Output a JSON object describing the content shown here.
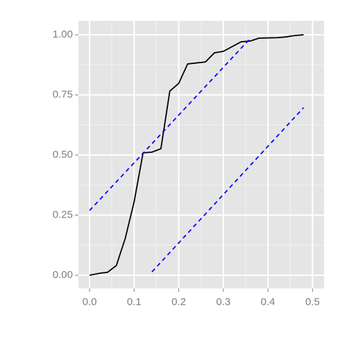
{
  "chart_data": {
    "type": "line",
    "xlim": [
      -0.025,
      0.526
    ],
    "ylim": [
      -0.055,
      1.058
    ],
    "xticks": [
      {
        "value": 0,
        "label": "0.0"
      },
      0.1,
      0.2,
      0.3,
      0.4,
      0.5
    ],
    "yticks": [
      {
        "value": 0,
        "label": "0.00"
      },
      0.25,
      {
        "value": 0.5,
        "label": "0.50"
      },
      0.75,
      {
        "value": 1,
        "label": "1.00"
      }
    ],
    "grid": true,
    "series": [
      {
        "color": "#000000",
        "dash": false,
        "x": [
          0,
          0.025,
          0.04,
          0.06,
          0.08,
          0.1,
          0.12,
          0.14,
          0.16,
          0.18,
          0.2,
          0.22,
          0.26,
          0.28,
          0.3,
          0.34,
          0.36,
          0.38,
          0.42,
          0.44,
          0.46,
          0.48
        ],
        "values": [
          0,
          0.009,
          0.012,
          0.04,
          0.153,
          0.306,
          0.509,
          0.512,
          0.526,
          0.766,
          0.798,
          0.879,
          0.887,
          0.925,
          0.931,
          0.971,
          0.974,
          0.986,
          0.988,
          0.991,
          0.997,
          1.0
        ]
      },
      {
        "color": "#0000ff",
        "dash": true,
        "x": [
          0,
          0.362
        ],
        "values": [
          0.269,
          0.988
        ]
      },
      {
        "color": "#0000ff",
        "dash": true,
        "x": [
          0.14,
          0.48
        ],
        "values": [
          0.014,
          0.697
        ]
      }
    ]
  }
}
